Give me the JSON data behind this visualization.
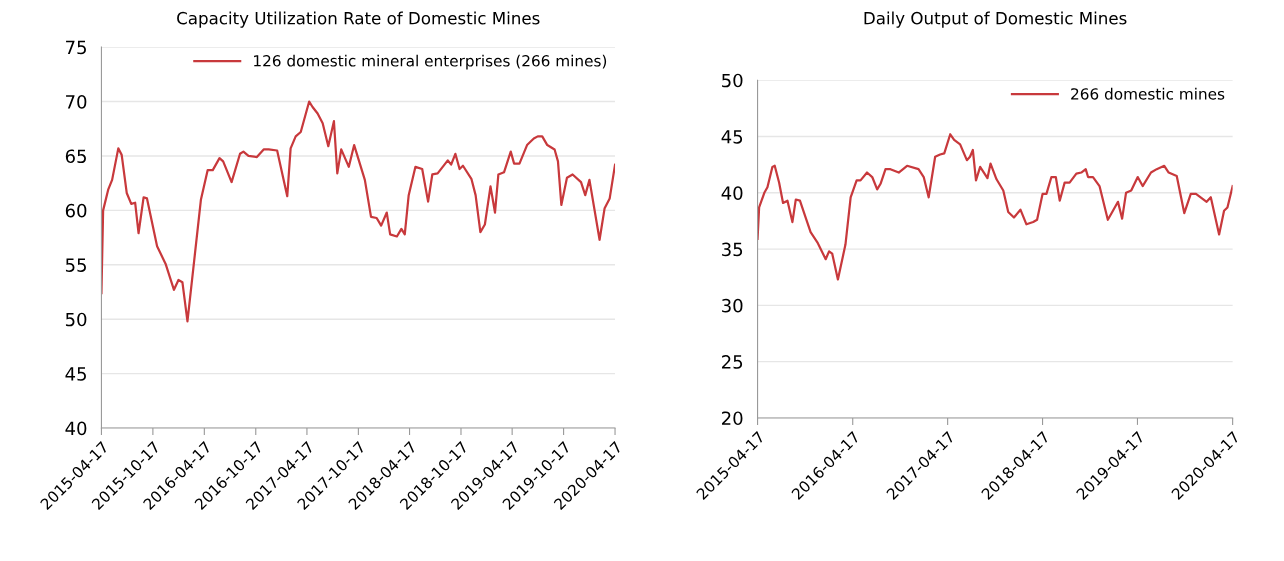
{
  "chart_data": [
    {
      "type": "line",
      "title": "Capacity Utilization Rate of Domestic Mines",
      "ylim": [
        40,
        75
      ],
      "yticks": [
        40,
        45,
        50,
        55,
        60,
        65,
        70,
        75
      ],
      "xlim": [
        "2015-04-17",
        "2020-04-17"
      ],
      "xticks": [
        "2015-04-17",
        "2015-10-17",
        "2016-04-17",
        "2016-10-17",
        "2017-04-17",
        "2017-10-17",
        "2018-04-17",
        "2018-10-17",
        "2019-04-17",
        "2019-10-17",
        "2020-04-17"
      ],
      "grid": "y",
      "legend": "top right",
      "marker": "none",
      "line_style": "solid",
      "series": [
        {
          "name": "126 domestic mineral enterprises (266 mines)",
          "color": "#c8393c",
          "x": [
            "2015-04-17",
            "2015-04-23",
            "2015-05-11",
            "2015-05-25",
            "2015-06-16",
            "2015-06-28",
            "2015-07-16",
            "2015-08-01",
            "2015-08-15",
            "2015-08-27",
            "2015-09-14",
            "2015-09-26",
            "2015-11-01",
            "2015-12-01",
            "2015-12-31",
            "2016-01-16",
            "2016-01-30",
            "2016-02-17",
            "2016-04-05",
            "2016-04-29",
            "2016-05-17",
            "2016-06-10",
            "2016-06-23",
            "2016-07-23",
            "2016-08-22",
            "2016-09-03",
            "2016-09-21",
            "2016-10-21",
            "2016-11-14",
            "2016-12-02",
            "2017-01-01",
            "2017-02-06",
            "2017-02-18",
            "2017-03-08",
            "2017-03-26",
            "2017-04-25",
            "2017-05-07",
            "2017-05-25",
            "2017-06-12",
            "2017-07-02",
            "2017-07-22",
            "2017-08-03",
            "2017-08-17",
            "2017-09-13",
            "2017-10-02",
            "2017-11-09",
            "2017-12-01",
            "2017-12-21",
            "2018-01-06",
            "2018-01-26",
            "2018-02-07",
            "2018-03-03",
            "2018-03-19",
            "2018-03-31",
            "2018-04-14",
            "2018-05-08",
            "2018-06-01",
            "2018-06-22",
            "2018-07-07",
            "2018-07-26",
            "2018-08-31",
            "2018-09-12",
            "2018-09-27",
            "2018-10-12",
            "2018-10-24",
            "2018-11-23",
            "2018-12-08",
            "2018-12-25",
            "2019-01-10",
            "2019-01-30",
            "2019-02-15",
            "2019-02-27",
            "2019-03-19",
            "2019-04-12",
            "2019-04-24",
            "2019-05-13",
            "2019-06-09",
            "2019-07-03",
            "2019-07-17",
            "2019-08-02",
            "2019-08-20",
            "2019-09-15",
            "2019-09-27",
            "2019-10-09",
            "2019-10-29",
            "2019-11-18",
            "2019-12-18",
            "2020-01-02",
            "2020-01-17",
            "2020-02-22",
            "2020-03-11",
            "2020-03-29",
            "2020-04-17"
          ],
          "values": [
            52.4,
            60.0,
            61.9,
            62.8,
            65.7,
            65.1,
            61.6,
            60.6,
            60.7,
            57.9,
            61.2,
            61.1,
            56.7,
            55.1,
            52.7,
            53.6,
            53.4,
            49.8,
            61.0,
            63.7,
            63.7,
            64.8,
            64.5,
            62.6,
            65.2,
            65.4,
            65.0,
            64.9,
            65.6,
            65.6,
            65.5,
            61.3,
            65.7,
            66.8,
            67.2,
            70.0,
            69.5,
            68.9,
            68.0,
            65.9,
            68.2,
            63.4,
            65.6,
            64.0,
            66.0,
            62.8,
            59.4,
            59.3,
            58.6,
            59.8,
            57.8,
            57.6,
            58.3,
            57.8,
            61.4,
            64.0,
            63.8,
            60.8,
            63.3,
            63.4,
            64.6,
            64.2,
            65.2,
            63.8,
            64.1,
            62.9,
            61.4,
            58.0,
            58.7,
            62.2,
            59.8,
            63.3,
            63.5,
            65.4,
            64.3,
            64.3,
            66.0,
            66.6,
            66.8,
            66.8,
            66.0,
            65.6,
            64.5,
            60.5,
            63.0,
            63.3,
            62.6,
            61.4,
            62.8,
            57.3,
            60.2,
            61.1,
            64.2
          ]
        }
      ]
    },
    {
      "type": "line",
      "title": "Daily Output of Domestic Mines",
      "ylim": [
        20,
        50
      ],
      "yticks": [
        20,
        25,
        30,
        35,
        40,
        45,
        50
      ],
      "xlim": [
        "2015-04-17",
        "2020-04-17"
      ],
      "xticks": [
        "2015-04-17",
        "2016-04-17",
        "2017-04-17",
        "2018-04-17",
        "2019-04-17",
        "2020-04-17"
      ],
      "grid": "y",
      "legend": "top right",
      "marker": "none",
      "line_style": "solid",
      "series": [
        {
          "name": "266 domestic mines",
          "color": "#c8393c",
          "x": [
            "2015-04-17",
            "2015-04-23",
            "2015-05-13",
            "2015-05-25",
            "2015-06-13",
            "2015-06-22",
            "2015-07-09",
            "2015-07-24",
            "2015-08-10",
            "2015-08-29",
            "2015-09-11",
            "2015-09-27",
            "2015-10-19",
            "2015-11-07",
            "2015-12-03",
            "2016-01-04",
            "2016-01-17",
            "2016-01-29",
            "2016-02-20",
            "2016-03-20",
            "2016-04-09",
            "2016-05-02",
            "2016-05-17",
            "2016-06-11",
            "2016-07-01",
            "2016-07-20",
            "2016-08-02",
            "2016-08-21",
            "2016-09-09",
            "2016-10-11",
            "2016-11-12",
            "2016-12-26",
            "2017-01-15",
            "2017-02-03",
            "2017-02-28",
            "2017-03-19",
            "2017-04-04",
            "2017-04-27",
            "2017-05-12",
            "2017-06-04",
            "2017-06-30",
            "2017-07-12",
            "2017-07-23",
            "2017-08-04",
            "2017-08-20",
            "2017-09-17",
            "2017-09-29",
            "2017-10-22",
            "2017-11-17",
            "2017-12-06",
            "2017-12-28",
            "2018-01-22",
            "2018-02-14",
            "2018-03-12",
            "2018-03-27",
            "2018-04-17",
            "2018-05-02",
            "2018-05-21",
            "2018-06-07",
            "2018-06-22",
            "2018-07-11",
            "2018-07-30",
            "2018-08-25",
            "2018-09-13",
            "2018-09-30",
            "2018-10-09",
            "2018-10-28",
            "2018-11-22",
            "2018-12-24",
            "2019-01-10",
            "2019-02-01",
            "2019-02-17",
            "2019-03-04",
            "2019-03-24",
            "2019-04-18",
            "2019-05-07",
            "2019-06-08",
            "2019-06-30",
            "2019-07-29",
            "2019-08-15",
            "2019-09-15",
            "2019-10-14",
            "2019-11-08",
            "2019-11-28",
            "2020-01-08",
            "2020-01-24",
            "2020-02-25",
            "2020-03-15",
            "2020-03-28",
            "2020-04-17"
          ],
          "values": [
            35.9,
            38.7,
            40.0,
            40.5,
            42.3,
            42.4,
            40.9,
            39.1,
            39.3,
            37.4,
            39.4,
            39.3,
            37.8,
            36.5,
            35.6,
            34.1,
            34.8,
            34.6,
            32.3,
            35.4,
            39.6,
            41.1,
            41.1,
            41.8,
            41.4,
            40.3,
            40.8,
            42.1,
            42.1,
            41.8,
            42.4,
            42.1,
            41.4,
            39.6,
            43.2,
            43.4,
            43.5,
            45.2,
            44.7,
            44.3,
            42.9,
            43.2,
            43.8,
            41.1,
            42.3,
            41.3,
            42.6,
            41.2,
            40.2,
            38.3,
            37.8,
            38.5,
            37.2,
            37.4,
            37.6,
            39.9,
            39.9,
            41.4,
            41.4,
            39.3,
            40.9,
            40.9,
            41.7,
            41.8,
            42.1,
            41.4,
            41.4,
            40.6,
            37.6,
            38.3,
            39.2,
            37.7,
            40.0,
            40.2,
            41.4,
            40.6,
            41.8,
            42.1,
            42.4,
            41.8,
            41.5,
            38.2,
            39.9,
            39.9,
            39.2,
            39.6,
            36.3,
            38.4,
            38.7,
            40.6
          ]
        }
      ]
    }
  ]
}
